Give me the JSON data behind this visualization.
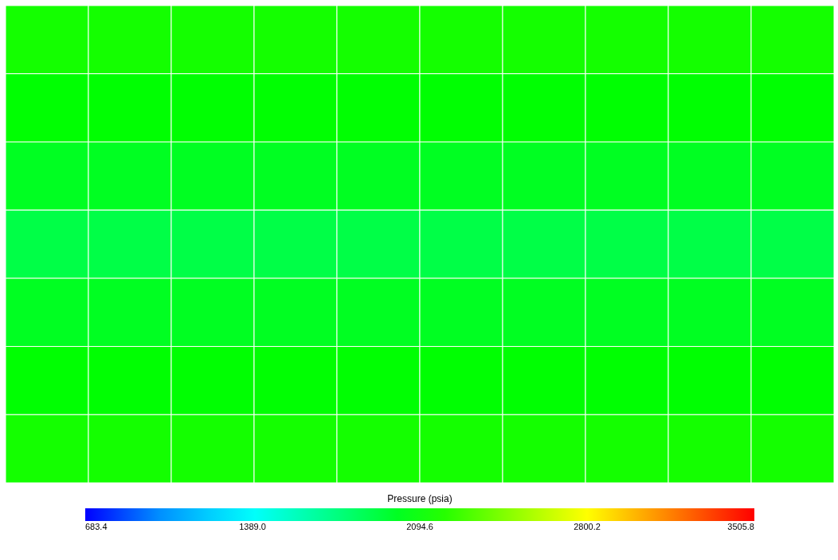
{
  "chart_data": {
    "type": "heatmap",
    "categories": [
      null,
      null,
      null,
      null,
      null,
      null,
      null,
      null,
      null,
      null
    ],
    "y_categories": [
      null,
      null,
      null,
      null,
      null,
      null,
      null
    ],
    "cells": [
      [
        2150,
        2150,
        2150,
        2150,
        2150,
        2150,
        2150,
        2150,
        2150,
        2150
      ],
      [
        2090,
        2090,
        2090,
        2090,
        2090,
        2090,
        2090,
        2090,
        2090,
        2090
      ],
      [
        2000,
        2000,
        2000,
        2000,
        2000,
        2000,
        2000,
        2000,
        2000,
        2000
      ],
      [
        1900,
        1900,
        1900,
        1900,
        1900,
        1900,
        1900,
        1900,
        1900,
        1900
      ],
      [
        2000,
        2000,
        2000,
        2000,
        2000,
        2000,
        2000,
        2000,
        2000,
        2000
      ],
      [
        2090,
        2090,
        2090,
        2090,
        2090,
        2090,
        2090,
        2090,
        2090,
        2090
      ],
      [
        2150,
        2150,
        2150,
        2150,
        2150,
        2150,
        2150,
        2150,
        2150,
        2150
      ]
    ],
    "clabel": "Pressure (psia)",
    "clim": [
      683.4,
      3505.8
    ],
    "cticks": [
      683.4,
      {
        "value": 1389,
        "label": "1389.0"
      },
      2094.6,
      2800.2,
      3505.8
    ],
    "tick_labels": false
  }
}
